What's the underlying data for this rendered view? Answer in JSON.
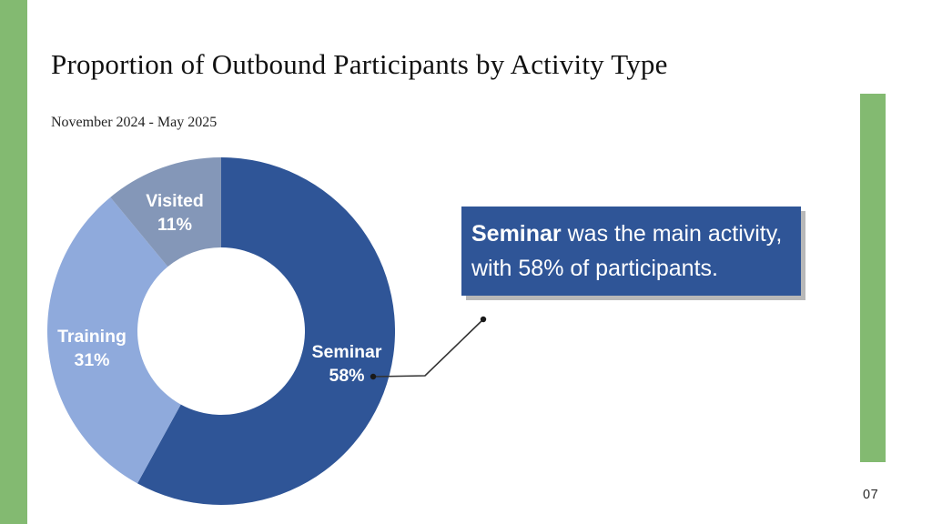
{
  "slide": {
    "title": "Proportion of Outbound Participants by Activity Type",
    "subtitle": "November 2024 - May 2025",
    "page_number": "07"
  },
  "accent": {
    "green": "#83BA71"
  },
  "chart_data": {
    "type": "pie",
    "subtype": "donut",
    "title": "Proportion of Outbound Participants by Activity Type",
    "period": "November 2024 - May 2025",
    "categories": [
      "Seminar",
      "Training",
      "Visited"
    ],
    "values": [
      58,
      31,
      11
    ],
    "unit": "%",
    "colors": [
      "#2F5597",
      "#8FAADC",
      "#8497B8"
    ],
    "start_angle_deg": 0,
    "direction": "clockwise",
    "inner_radius_ratio": 0.48,
    "legend_position": "none",
    "labels": [
      {
        "name": "Seminar",
        "value_text": "58%"
      },
      {
        "name": "Training",
        "value_text": "31%"
      },
      {
        "name": "Visited",
        "value_text": "11%"
      }
    ]
  },
  "callout": {
    "bold": "Seminar",
    "line1_rest": " was the main activity,",
    "line2": "with 58% of participants.",
    "bg_color": "#2F5597"
  }
}
